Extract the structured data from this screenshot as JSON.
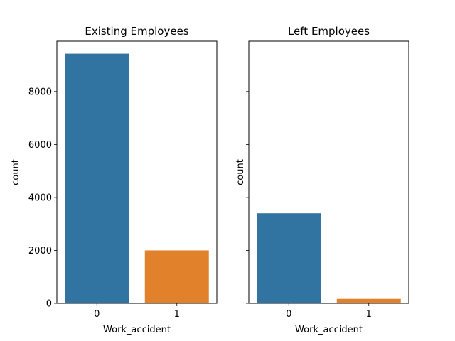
{
  "chart_data": [
    {
      "type": "bar",
      "title": "Existing Employees",
      "xlabel": "Work_accident",
      "ylabel": "count",
      "categories": [
        "0",
        "1"
      ],
      "values": [
        9428,
        2000
      ],
      "colors": [
        "#3274a1",
        "#e1812c"
      ],
      "ylim": [
        0,
        9900
      ],
      "yticks": [
        0,
        2000,
        4000,
        6000,
        8000
      ],
      "ytick_labels": [
        "0",
        "2000",
        "4000",
        "6000",
        "8000"
      ],
      "grid": false,
      "show_ytick_labels": true
    },
    {
      "type": "bar",
      "title": "Left Employees",
      "xlabel": "Work_accident",
      "ylabel": "count",
      "categories": [
        "0",
        "1"
      ],
      "values": [
        3402,
        169
      ],
      "colors": [
        "#3274a1",
        "#e1812c"
      ],
      "ylim": [
        0,
        9900
      ],
      "yticks": [
        0,
        2000,
        4000,
        6000,
        8000
      ],
      "ytick_labels": [
        "",
        "",
        "",
        "",
        ""
      ],
      "grid": false,
      "show_ytick_labels": false
    }
  ]
}
